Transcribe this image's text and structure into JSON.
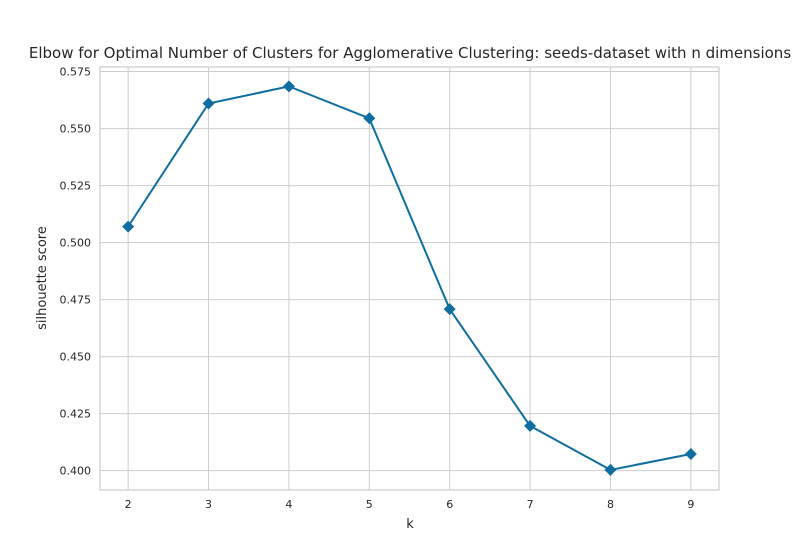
{
  "chart_data": {
    "type": "line",
    "title": "Elbow for Optimal Number of Clusters for Agglomerative Clustering: seeds-dataset with n dimensions",
    "xlabel": "k",
    "ylabel": "silhouette score",
    "x": [
      2,
      3,
      4,
      5,
      6,
      7,
      8,
      9
    ],
    "series": [
      {
        "values": [
          0.507,
          0.561,
          0.5685,
          0.5545,
          0.4708,
          0.4196,
          0.4003,
          0.4073
        ],
        "color": "#0e6ea0",
        "marker": "diamond"
      }
    ],
    "xticks": [
      "2",
      "3",
      "4",
      "5",
      "6",
      "7",
      "8",
      "9"
    ],
    "yticks": [
      "0.400",
      "0.425",
      "0.450",
      "0.475",
      "0.500",
      "0.525",
      "0.550",
      "0.575"
    ],
    "xlim": [
      1.65,
      9.35
    ],
    "ylim": [
      0.3915,
      0.577
    ],
    "grid": true,
    "legend": "none"
  }
}
